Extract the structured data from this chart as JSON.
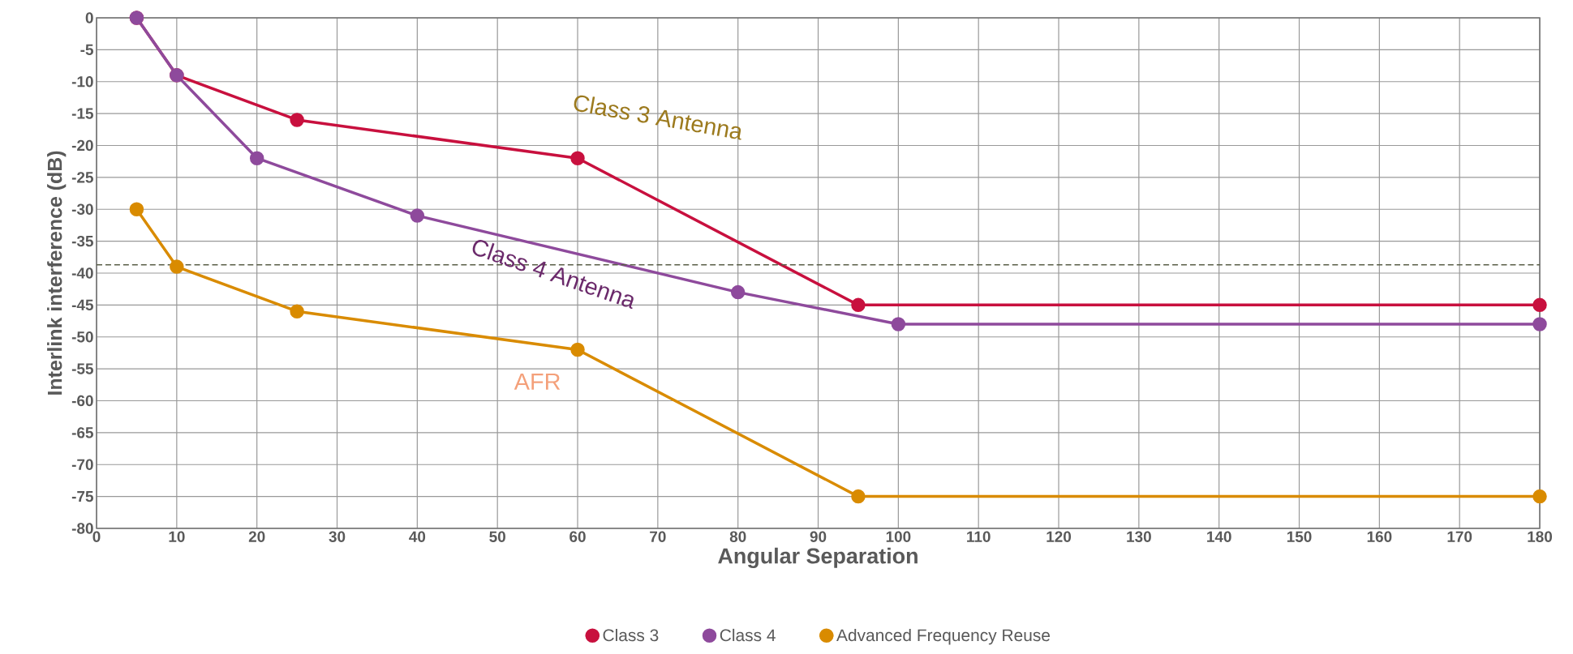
{
  "chart_data": {
    "type": "line",
    "xlabel": "Angular Separation",
    "ylabel": "Interlink interference (dB)",
    "xlim": [
      0,
      180
    ],
    "xticks": [
      0,
      10,
      20,
      30,
      40,
      50,
      60,
      70,
      80,
      90,
      100,
      110,
      120,
      130,
      140,
      150,
      160,
      170,
      180
    ],
    "ylim": [
      -80,
      0
    ],
    "yticks": [
      0,
      -5,
      -10,
      -15,
      -20,
      -25,
      -30,
      -35,
      -40,
      -45,
      -50,
      -55,
      -60,
      -65,
      -70,
      -75,
      -80
    ],
    "grid": true,
    "legend": "bottom",
    "marker": "circle",
    "line_style": "solid",
    "ref_lines": [
      {
        "axis": "y",
        "value": -38.7,
        "color": "#5a5f48",
        "line_style": "dashed"
      }
    ],
    "annotations": [
      "Class 3 Antenna",
      "Class 4 Antenna",
      "AFR"
    ],
    "series": [
      {
        "name": "Class 3",
        "color": "#c8103e",
        "x": [
          5,
          10,
          25,
          60,
          95,
          180
        ],
        "values": [
          0,
          -9,
          -16,
          -22,
          -45,
          -45
        ]
      },
      {
        "name": "Class 4",
        "color": "#8e4a9c",
        "x": [
          5,
          10,
          20,
          40,
          80,
          100,
          180
        ],
        "values": [
          0,
          -9,
          -22,
          -31,
          -43,
          -48,
          -48
        ]
      },
      {
        "name": "Advanced Frequency Reuse",
        "color": "#d98b00",
        "x": [
          5,
          10,
          25,
          60,
          95,
          180
        ],
        "values": [
          -30,
          -39,
          -46,
          -52,
          -75,
          -75
        ]
      }
    ]
  }
}
